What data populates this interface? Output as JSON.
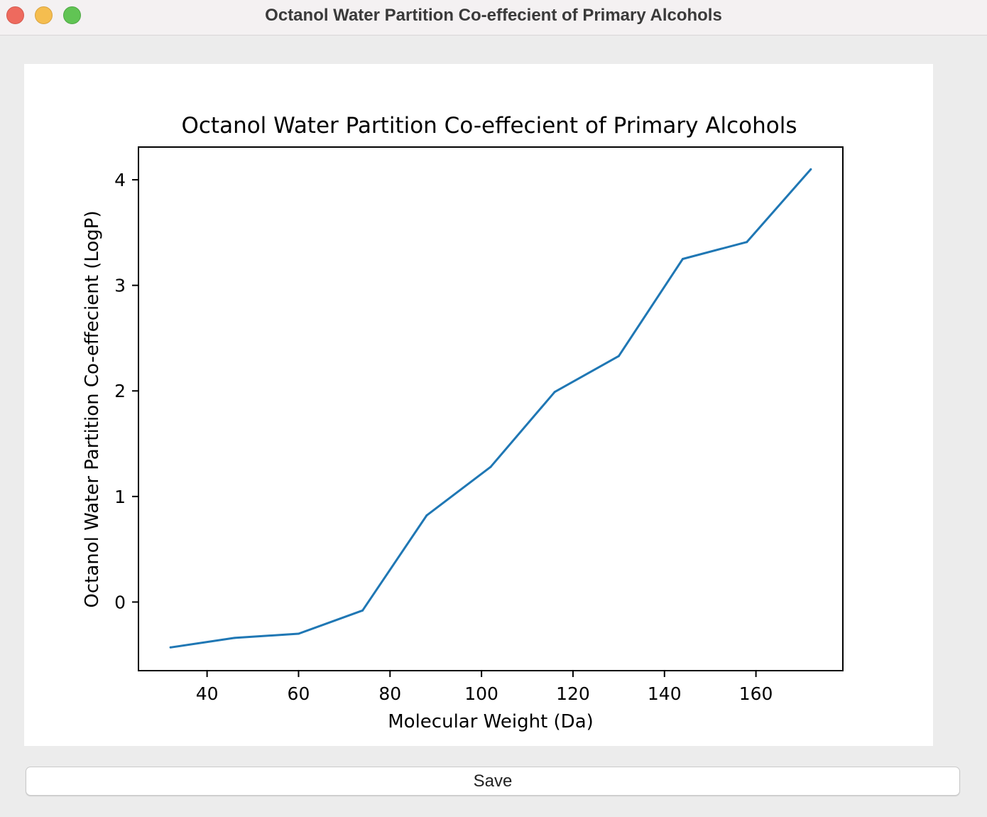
{
  "window": {
    "title": "Octanol Water Partition Co-effecient of Primary Alcohols"
  },
  "toolbar": {
    "save_label": "Save"
  },
  "colors": {
    "line": "#1f77b4"
  },
  "chart_data": {
    "type": "line",
    "title": "Octanol Water Partition Co-effecient of Primary Alcohols",
    "xlabel": "Molecular Weight (Da)",
    "ylabel": "Octanol Water Partition Co-effecient (LogP)",
    "x": [
      32,
      46,
      60,
      74,
      88,
      102,
      116,
      130,
      144,
      158,
      172
    ],
    "series": [
      {
        "values": [
          -0.43,
          -0.34,
          -0.3,
          -0.08,
          0.82,
          1.28,
          1.99,
          2.33,
          3.25,
          3.41,
          4.1
        ]
      }
    ],
    "xlim": [
      25,
      179
    ],
    "ylim": [
      -0.65,
      4.31
    ],
    "xticks": [
      40,
      60,
      80,
      100,
      120,
      140,
      160
    ],
    "yticks": [
      0,
      1,
      2,
      3,
      4
    ],
    "grid": false,
    "legend": "none"
  }
}
